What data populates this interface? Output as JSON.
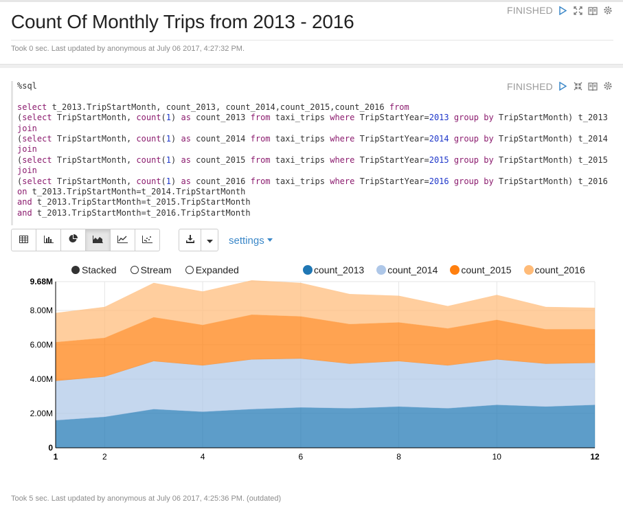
{
  "paragraph1": {
    "title": "Count Of Monthly Trips from 2013 - 2016",
    "status": "FINISHED",
    "footer": "Took 0 sec. Last updated by anonymous at July 06 2017, 4:27:32 PM."
  },
  "paragraph2": {
    "status": "FINISHED",
    "code": {
      "magic": "%sql",
      "select_line": {
        "kw_select": "select",
        "body": " t_2013.TripStartMonth, count_2013, count_2014,count_2015,count_2016 ",
        "kw_from": "from"
      },
      "subqueries": [
        {
          "pre": "(",
          "kw_select": "select",
          "mid1": " TripStartMonth, ",
          "func": "count",
          "arg": "(",
          "one": "1",
          "close": ") ",
          "kw_as": "as",
          "alias": " count_2013 ",
          "kw_from": "from",
          "table": " taxi_trips ",
          "kw_where": "where",
          "cond": " TripStartYear=",
          "year": "2013",
          "sp": " ",
          "kw_group": "group",
          "sp2": " ",
          "kw_by": "by",
          "tail": " TripStartMonth) t_2013",
          "join": "join"
        },
        {
          "pre": "(",
          "kw_select": "select",
          "mid1": " TripStartMonth, ",
          "func": "count",
          "arg": "(",
          "one": "1",
          "close": ") ",
          "kw_as": "as",
          "alias": " count_2014 ",
          "kw_from": "from",
          "table": " taxi_trips ",
          "kw_where": "where",
          "cond": " TripStartYear=",
          "year": "2014",
          "sp": " ",
          "kw_group": "group",
          "sp2": " ",
          "kw_by": "by",
          "tail": " TripStartMonth) t_2014",
          "join": "join"
        },
        {
          "pre": "(",
          "kw_select": "select",
          "mid1": " TripStartMonth, ",
          "func": "count",
          "arg": "(",
          "one": "1",
          "close": ") ",
          "kw_as": "as",
          "alias": " count_2015 ",
          "kw_from": "from",
          "table": " taxi_trips ",
          "kw_where": "where",
          "cond": " TripStartYear=",
          "year": "2015",
          "sp": " ",
          "kw_group": "group",
          "sp2": " ",
          "kw_by": "by",
          "tail": " TripStartMonth) t_2015",
          "join": "join"
        },
        {
          "pre": "(",
          "kw_select": "select",
          "mid1": " TripStartMonth, ",
          "func": "count",
          "arg": "(",
          "one": "1",
          "close": ") ",
          "kw_as": "as",
          "alias": " count_2016 ",
          "kw_from": "from",
          "table": " taxi_trips ",
          "kw_where": "where",
          "cond": " TripStartYear=",
          "year": "2016",
          "sp": " ",
          "kw_group": "group",
          "sp2": " ",
          "kw_by": "by",
          "tail": " TripStartMonth) t_2016",
          "join": ""
        }
      ],
      "on_lines": [
        {
          "kw": "on",
          "rest": " t_2013.TripStartMonth=t_2014.TripStartMonth"
        },
        {
          "kw": "and",
          "rest": " t_2013.TripStartMonth=t_2015.TripStartMonth"
        },
        {
          "kw": "and",
          "rest": " t_2013.TripStartMonth=t_2016.TripStartMonth"
        }
      ]
    },
    "toolbar": {
      "buttons": [
        "table-icon",
        "bar-chart-icon",
        "pie-chart-icon",
        "area-chart-icon",
        "line-chart-icon",
        "scatter-chart-icon"
      ],
      "active": "area-chart-icon",
      "download_icon": "download-icon",
      "settings_label": "settings"
    },
    "mode_legend": [
      {
        "label": "Stacked",
        "selected": true
      },
      {
        "label": "Stream",
        "selected": false
      },
      {
        "label": "Expanded",
        "selected": false
      }
    ],
    "footer": "Took 5 sec. Last updated by anonymous at July 06 2017, 4:25:36 PM. (outdated)"
  },
  "chart_data": {
    "type": "area",
    "stacked": true,
    "x": [
      1,
      2,
      3,
      4,
      5,
      6,
      7,
      8,
      9,
      10,
      11,
      12
    ],
    "x_ticks": [
      "1",
      "2",
      "4",
      "6",
      "8",
      "10",
      "12"
    ],
    "y_ticks": [
      "0",
      "2.00M",
      "4.00M",
      "6.00M",
      "8.00M",
      "9.68M"
    ],
    "ylim": [
      0,
      9680000
    ],
    "grid": true,
    "legend_position": "top-right",
    "series": [
      {
        "name": "count_2013",
        "color": "#1f77b4",
        "values": [
          1600000,
          1800000,
          2250000,
          2100000,
          2250000,
          2350000,
          2300000,
          2400000,
          2300000,
          2500000,
          2400000,
          2500000
        ]
      },
      {
        "name": "count_2014",
        "color": "#aec7e8",
        "values": [
          2300000,
          2350000,
          2800000,
          2700000,
          2900000,
          2850000,
          2600000,
          2650000,
          2500000,
          2650000,
          2500000,
          2450000
        ]
      },
      {
        "name": "count_2015",
        "color": "#ff7f0e",
        "values": [
          2250000,
          2250000,
          2550000,
          2350000,
          2600000,
          2450000,
          2300000,
          2250000,
          2150000,
          2300000,
          2000000,
          1950000
        ]
      },
      {
        "name": "count_2016",
        "color": "#ffbb78",
        "values": [
          1700000,
          1800000,
          2000000,
          1950000,
          2000000,
          1950000,
          1750000,
          1550000,
          1300000,
          1450000,
          1300000,
          1250000
        ]
      }
    ]
  }
}
